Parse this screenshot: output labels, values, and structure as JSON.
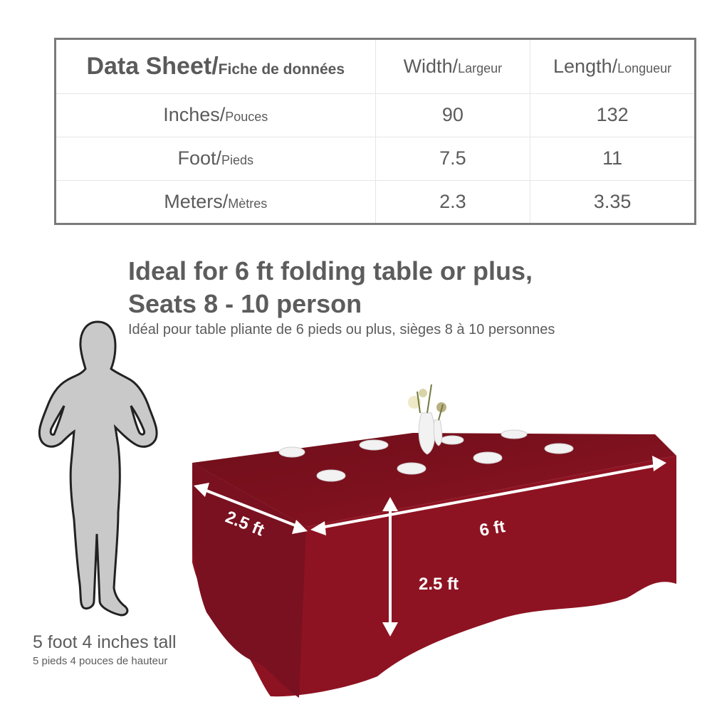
{
  "data_sheet": {
    "title_en": "Data Sheet/",
    "title_fr": "Fiche de données",
    "col_width_en": "Width/",
    "col_width_fr": "Largeur",
    "col_length_en": "Length/",
    "col_length_fr": "Longueur",
    "rows": [
      {
        "unit_en": "Inches/",
        "unit_fr": "Pouces",
        "width": "90",
        "length": "132"
      },
      {
        "unit_en": "Foot/",
        "unit_fr": "Pieds",
        "width": "7.5",
        "length": "11"
      },
      {
        "unit_en": "Meters/",
        "unit_fr": "Mètres",
        "width": "2.3",
        "length": "3.35"
      }
    ]
  },
  "headline": {
    "line1": "Ideal for 6 ft folding table or plus,",
    "line2": "Seats 8 - 10 person",
    "french": "Idéal pour table pliante de 6 pieds ou plus, sièges 8 à 10 personnes"
  },
  "person": {
    "caption_en": "5 foot 4 inches tall",
    "caption_fr": "5 pieds 4 pouces de hauteur"
  },
  "dimensions": {
    "depth": "2.5 ft",
    "length": "6 ft",
    "height": "2.5 ft"
  },
  "colors": {
    "tablecloth": "#8e1322",
    "tablecloth_dark": "#6e0f1a",
    "silhouette": "#c9c9c9",
    "text": "#5c5c5c"
  }
}
